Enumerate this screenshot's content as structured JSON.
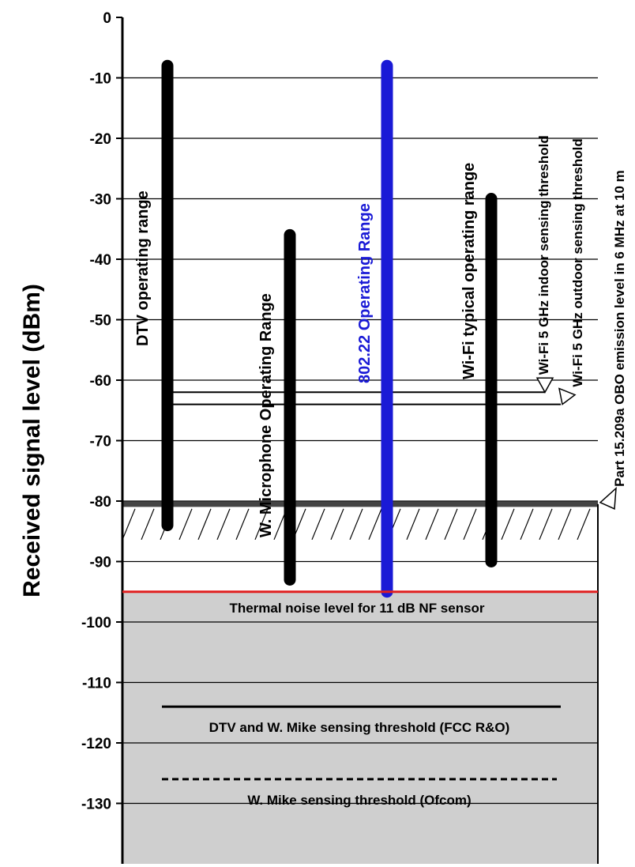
{
  "chart_data": {
    "type": "range",
    "ylabel": "Received signal level (dBm)",
    "ylim": [
      -140,
      0
    ],
    "yticks": [
      0,
      -10,
      -20,
      -30,
      -40,
      -50,
      -60,
      -70,
      -80,
      -90,
      -100,
      -110,
      -120,
      -130
    ],
    "grid": true,
    "ranges": [
      {
        "name": "DTV operating range",
        "top": -8,
        "bottom": -84,
        "color": "#000000"
      },
      {
        "name": "W. Microphone Operating Range",
        "top": -36,
        "bottom": -93,
        "color": "#000000"
      },
      {
        "name": "802.22 Operating Range",
        "top": -8,
        "bottom": -95,
        "color": "#1a1ad6"
      },
      {
        "name": "Wi-Fi typical operating range",
        "top": -30,
        "bottom": -90,
        "color": "#000000"
      }
    ],
    "thresholds": [
      {
        "name": "Wi-Fi 5 GHz indoor sensing threshold",
        "value": -62
      },
      {
        "name": "Wi-Fi 5 GHz outdoor sensing threshold",
        "value": -64
      },
      {
        "name": "Part 15.209a OBO emission level in 6 MHz at 10 m",
        "value": -80.5
      }
    ],
    "noise_floor": {
      "label": "Thermal noise level for 11 dB NF sensor",
      "value": -95,
      "color": "#e02020"
    },
    "sensing_levels": [
      {
        "label": "DTV and W. Mike sensing threshold (FCC R&O)",
        "value": -114,
        "style": "solid"
      },
      {
        "label": "W. Mike sensing threshold (Ofcom)",
        "value": -126,
        "style": "dashed"
      }
    ]
  }
}
